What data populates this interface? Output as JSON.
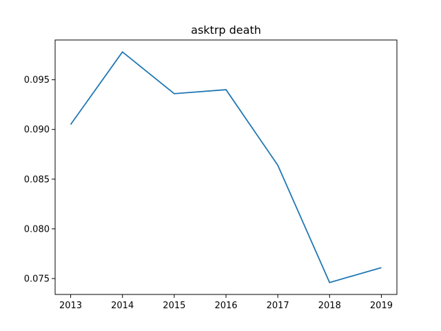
{
  "chart_data": {
    "type": "line",
    "title": "asktrp death",
    "xlabel": "",
    "ylabel": "",
    "x": [
      2013,
      2014,
      2015,
      2016,
      2017,
      2018,
      2019
    ],
    "series": [
      {
        "values": [
          0.0905,
          0.0978,
          0.0936,
          0.094,
          0.0864,
          0.0746,
          0.0761
        ]
      }
    ],
    "xlim": [
      2012.7,
      2019.3
    ],
    "ylim": [
      0.0734,
      0.099
    ],
    "xticks": [
      "2013",
      "2014",
      "2015",
      "2016",
      "2017",
      "2018",
      "2019"
    ],
    "yticks": [
      "0.075",
      "0.080",
      "0.085",
      "0.090",
      "0.095"
    ],
    "ytick_values": [
      0.075,
      0.08,
      0.085,
      0.09,
      0.095
    ],
    "grid": false,
    "line_color": "#1f77b4"
  }
}
